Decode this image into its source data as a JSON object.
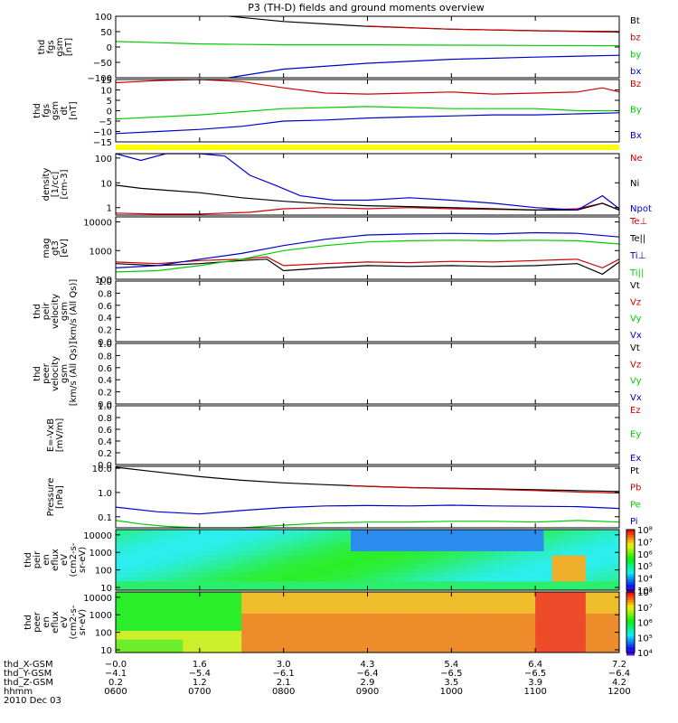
{
  "title": "P3 (TH-D) fields and ground moments overview",
  "chart_data": [
    {
      "id": "fgs_gsm",
      "type": "line",
      "ylabel": [
        "thd",
        "fgs",
        "gsm",
        "[nT]"
      ],
      "ylim": [
        -100,
        100
      ],
      "yticks": [
        100,
        50,
        0,
        -50,
        -100
      ],
      "ytick_labels": [
        "100",
        "50",
        "0",
        "−50",
        "−100"
      ],
      "series": [
        {
          "name": "Bt",
          "color": "#000000",
          "x": [
            1.35,
            2,
            3,
            4,
            5,
            6
          ],
          "y": [
            100,
            83,
            67,
            58,
            53,
            50
          ]
        },
        {
          "name": "bz",
          "color": "#cc0000",
          "x": [
            3,
            4,
            5,
            6
          ],
          "y": [
            68,
            58,
            53,
            48
          ]
        },
        {
          "name": "by",
          "color": "#00cc00",
          "x": [
            0,
            0.5,
            1,
            2,
            3,
            4,
            5,
            6
          ],
          "y": [
            18,
            14,
            10,
            7,
            7,
            6,
            5,
            4
          ]
        },
        {
          "name": "bx",
          "color": "#0000cc",
          "x": [
            1.35,
            2,
            3,
            4,
            5,
            6
          ],
          "y": [
            -100,
            -72,
            -53,
            -40,
            -33,
            -27
          ]
        }
      ]
    },
    {
      "id": "fgs_gsm_dt",
      "type": "line",
      "ylabel": [
        "thd",
        "fgs",
        "gsm",
        "dt",
        "[nT]"
      ],
      "ylim": [
        -15,
        15
      ],
      "yticks": [
        15,
        10,
        5,
        0,
        -5,
        -10,
        -15
      ],
      "ytick_labels": [
        "15",
        "10",
        "5",
        "0",
        "−5",
        "−10",
        "−15"
      ],
      "series": [
        {
          "name": "Bz",
          "color": "#cc0000",
          "x": [
            0,
            0.5,
            1,
            1.5,
            2,
            2.5,
            3,
            3.5,
            4,
            4.5,
            5,
            5.5,
            5.8,
            6
          ],
          "y": [
            13.5,
            14.5,
            15,
            14,
            11,
            8.5,
            8,
            8.5,
            9,
            8,
            8.5,
            9,
            11,
            9
          ]
        },
        {
          "name": "By",
          "color": "#00cc00",
          "x": [
            0,
            1,
            2,
            3,
            4,
            5,
            5.5,
            6
          ],
          "y": [
            -4,
            -2,
            1,
            2,
            1,
            1,
            0,
            0
          ]
        },
        {
          "name": "Bx",
          "color": "#0000cc",
          "x": [
            0,
            0.5,
            1,
            1.5,
            2,
            2.5,
            3,
            3.5,
            4,
            4.5,
            5,
            5.5,
            6
          ],
          "y": [
            -11,
            -10,
            -9,
            -7.5,
            -5,
            -4.5,
            -3.5,
            -3,
            -2.5,
            -2,
            -2,
            -1.5,
            -1
          ]
        }
      ]
    },
    {
      "id": "density",
      "type": "line",
      "log_y": true,
      "ylabel": [
        "density",
        "[1/cc]",
        "[cm-3]"
      ],
      "ylim": [
        0.5,
        150
      ],
      "yticks": [
        100,
        10,
        1
      ],
      "ytick_labels": [
        "100",
        "10",
        "1"
      ],
      "series": [
        {
          "name": "Ne",
          "color": "#cc0000",
          "x": [
            0,
            0.5,
            1,
            1.3,
            1.6,
            2,
            2.5,
            3,
            3.5,
            4,
            4.5,
            5,
            5.5,
            5.8,
            6
          ],
          "y": [
            0.6,
            0.55,
            0.55,
            0.6,
            0.65,
            0.9,
            1.0,
            0.9,
            1.0,
            0.9,
            0.85,
            0.8,
            0.9,
            1.5,
            0.8
          ]
        },
        {
          "name": "Ni",
          "color": "#000000",
          "x": [
            0,
            0.3,
            0.6,
            1,
            1.5,
            2,
            2.5,
            3,
            3.5,
            4,
            4.5,
            5,
            5.5,
            5.8,
            6
          ],
          "y": [
            8,
            6,
            5,
            4,
            2.5,
            1.8,
            1.4,
            1.2,
            1.1,
            1.0,
            0.9,
            0.8,
            0.8,
            1.5,
            0.8
          ]
        },
        {
          "name": "Npot",
          "color": "#0000cc",
          "x": [
            0,
            0.3,
            0.6,
            1,
            1.3,
            1.6,
            1.9,
            2.2,
            2.6,
            3,
            3.5,
            4,
            4.5,
            5,
            5.5,
            5.8,
            6
          ],
          "y": [
            150,
            80,
            150,
            150,
            120,
            20,
            8,
            3,
            2,
            2,
            2.5,
            2.0,
            1.5,
            1.0,
            0.8,
            3,
            0.9
          ]
        }
      ]
    },
    {
      "id": "temperature",
      "type": "line",
      "log_y": true,
      "ylabel": [
        "mag",
        "gt3",
        "[eV]"
      ],
      "ylim": [
        100,
        15000
      ],
      "yticks": [
        10000,
        1000,
        100
      ],
      "ytick_labels": [
        "10000",
        "1000",
        "100"
      ],
      "series": [
        {
          "name": "Te⊥",
          "color": "#cc0000",
          "x": [
            0,
            0.5,
            1,
            1.5,
            1.8,
            2,
            2.5,
            3,
            3.5,
            4,
            4.5,
            5,
            5.5,
            5.8,
            6
          ],
          "y": [
            400,
            350,
            450,
            500,
            600,
            300,
            350,
            400,
            380,
            420,
            400,
            450,
            500,
            250,
            500
          ]
        },
        {
          "name": "Te||",
          "color": "#000000",
          "x": [
            0,
            0.5,
            1,
            1.5,
            1.8,
            2,
            2.5,
            3,
            3.5,
            4,
            4.5,
            5,
            5.5,
            5.8,
            6
          ],
          "y": [
            350,
            300,
            350,
            450,
            500,
            200,
            250,
            300,
            280,
            300,
            280,
            300,
            350,
            150,
            400
          ]
        },
        {
          "name": "Ti⊥",
          "color": "#0000cc",
          "x": [
            0,
            0.5,
            1,
            1.5,
            2,
            2.5,
            3,
            3.5,
            4,
            4.5,
            5,
            5.5,
            6
          ],
          "y": [
            250,
            300,
            500,
            800,
            1500,
            2500,
            3500,
            3800,
            4000,
            3800,
            4200,
            4000,
            3000
          ]
        },
        {
          "name": "Ti||",
          "color": "#00cc00",
          "x": [
            0,
            0.5,
            1,
            1.5,
            2,
            2.5,
            3,
            3.5,
            4,
            4.5,
            5,
            5.5,
            6
          ],
          "y": [
            180,
            200,
            300,
            500,
            1000,
            1500,
            2000,
            2200,
            2300,
            2200,
            2300,
            2200,
            1700
          ]
        }
      ]
    },
    {
      "id": "peir_velocity",
      "type": "line",
      "ylabel": [
        "thd",
        "peir",
        "velocity",
        "gsm",
        "[km/s (All Qs)]"
      ],
      "ylim": [
        0,
        1
      ],
      "yticks": [
        1.0,
        0.8,
        0.6,
        0.4,
        0.2,
        0.0
      ],
      "ytick_labels": [
        "1.0",
        "0.8",
        "0.6",
        "0.4",
        "0.2",
        "0.0"
      ],
      "series": [
        {
          "name": "Vt",
          "color": "#000000",
          "x": [],
          "y": []
        },
        {
          "name": "Vz",
          "color": "#cc0000",
          "x": [],
          "y": []
        },
        {
          "name": "Vy",
          "color": "#00cc00",
          "x": [],
          "y": []
        },
        {
          "name": "Vx",
          "color": "#0000cc",
          "x": [],
          "y": []
        }
      ]
    },
    {
      "id": "peer_velocity",
      "type": "line",
      "ylabel": [
        "thd",
        "peer",
        "velocity",
        "gsm",
        "[km/s (All Qs)]"
      ],
      "ylim": [
        0,
        1
      ],
      "yticks": [
        1.0,
        0.8,
        0.6,
        0.4,
        0.2,
        0.0
      ],
      "ytick_labels": [
        "1.0",
        "0.8",
        "0.6",
        "0.4",
        "0.2",
        "0.0"
      ],
      "series": [
        {
          "name": "Vt",
          "color": "#000000",
          "x": [],
          "y": []
        },
        {
          "name": "Vz",
          "color": "#cc0000",
          "x": [],
          "y": []
        },
        {
          "name": "Vy",
          "color": "#00cc00",
          "x": [],
          "y": []
        },
        {
          "name": "Vx",
          "color": "#0000cc",
          "x": [],
          "y": []
        }
      ]
    },
    {
      "id": "efield",
      "type": "line",
      "ylabel": [
        "E=-VxB",
        "[mV/m]"
      ],
      "ylim": [
        0,
        1
      ],
      "yticks": [
        1.0,
        0.8,
        0.6,
        0.4,
        0.2,
        0.0
      ],
      "ytick_labels": [
        "1.0",
        "0.8",
        "0.6",
        "0.4",
        "0.2",
        "0.0"
      ],
      "series": [
        {
          "name": "Ez",
          "color": "#cc0000",
          "x": [],
          "y": []
        },
        {
          "name": "Ey",
          "color": "#00cc00",
          "x": [],
          "y": []
        },
        {
          "name": "Ex",
          "color": "#0000cc",
          "x": [],
          "y": []
        }
      ]
    },
    {
      "id": "pressure",
      "type": "line",
      "log_y": true,
      "ylabel": [
        "Pressure",
        "[nPa]"
      ],
      "ylim": [
        0.035,
        12
      ],
      "yticks": [
        10,
        1,
        0.1
      ],
      "ytick_labels": [
        "10.0",
        "1.0",
        "0.1"
      ],
      "series": [
        {
          "name": "Pt",
          "color": "#000000",
          "x": [
            0,
            0.5,
            1,
            1.5,
            2,
            2.5,
            3,
            3.5,
            4,
            4.5,
            5,
            5.5,
            6
          ],
          "y": [
            11,
            7,
            4.5,
            3.2,
            2.5,
            2.1,
            1.8,
            1.6,
            1.5,
            1.4,
            1.3,
            1.2,
            1.1
          ]
        },
        {
          "name": "Pb",
          "color": "#cc0000",
          "x": [
            2.8,
            3,
            3.5,
            4,
            4.5,
            5,
            5.5,
            6
          ],
          "y": [
            1.9,
            1.8,
            1.6,
            1.45,
            1.35,
            1.2,
            1.05,
            0.95
          ]
        },
        {
          "name": "Pe",
          "color": "#00cc00",
          "x": [
            0,
            0.3,
            0.6,
            1,
            1.5,
            2,
            2.5,
            3,
            3.5,
            4,
            4.5,
            5,
            5.5,
            6
          ],
          "y": [
            0.07,
            0.05,
            0.04,
            0.035,
            0.035,
            0.045,
            0.055,
            0.06,
            0.06,
            0.065,
            0.065,
            0.06,
            0.07,
            0.06
          ]
        },
        {
          "name": "Pi",
          "color": "#0000cc",
          "x": [
            0,
            0.5,
            1,
            1.5,
            2,
            2.5,
            3,
            3.5,
            4,
            4.5,
            5,
            5.5,
            6
          ],
          "y": [
            0.25,
            0.16,
            0.13,
            0.18,
            0.24,
            0.28,
            0.29,
            0.28,
            0.3,
            0.28,
            0.27,
            0.26,
            0.22
          ]
        }
      ]
    },
    {
      "id": "peir_spectrogram",
      "type": "heatmap",
      "ylabel": [
        "thd",
        "peir",
        "en",
        "eflux",
        "eV",
        "(cm2-s-",
        "sr-eV)"
      ],
      "ylim": [
        7,
        20000
      ],
      "yticks": [
        10000,
        1000,
        100,
        10
      ],
      "ytick_labels": [
        "10000",
        "1000",
        "100",
        "10"
      ],
      "colorbar": {
        "ticks": [
          8,
          7,
          6,
          5,
          4,
          3
        ],
        "labels": [
          "10⁸",
          "10⁷",
          "10⁶",
          "10⁵",
          "10⁴",
          "10³"
        ]
      }
    },
    {
      "id": "peer_spectrogram",
      "type": "heatmap",
      "ylabel": [
        "thd",
        "peer",
        "en",
        "eflux",
        "eV",
        "(cm2-s-",
        "sr-eV)"
      ],
      "ylim": [
        7,
        20000
      ],
      "yticks": [
        10000,
        1000,
        100,
        10
      ],
      "ytick_labels": [
        "10000",
        "1000",
        "100",
        "10"
      ],
      "colorbar": {
        "ticks": [
          8,
          7,
          6,
          5,
          4
        ],
        "labels": [
          "10⁸",
          "10⁷",
          "10⁶",
          "10⁵",
          "10⁴"
        ]
      }
    }
  ],
  "x_axis": {
    "range": [
      0,
      6
    ],
    "rows": [
      {
        "label": "thd_X-GSM",
        "values": [
          "−0.0",
          "1.6",
          "3.0",
          "4.3",
          "5.4",
          "6.4",
          "7.2"
        ]
      },
      {
        "label": "thd_Y-GSM",
        "values": [
          "−4.1",
          "−5.4",
          "−6.1",
          "−6.4",
          "−6.5",
          "−6.5",
          "−6.4"
        ]
      },
      {
        "label": "thd_Z-GSM",
        "values": [
          "0.2",
          "1.2",
          "2.1",
          "2.9",
          "3.5",
          "3.9",
          "4.2"
        ]
      },
      {
        "label": "hhmm",
        "values": [
          "0600",
          "0700",
          "0800",
          "0900",
          "1000",
          "1100",
          "1200"
        ]
      }
    ],
    "date": "2010 Dec 03"
  },
  "colors": {
    "flag_bar": "#ffff00"
  }
}
